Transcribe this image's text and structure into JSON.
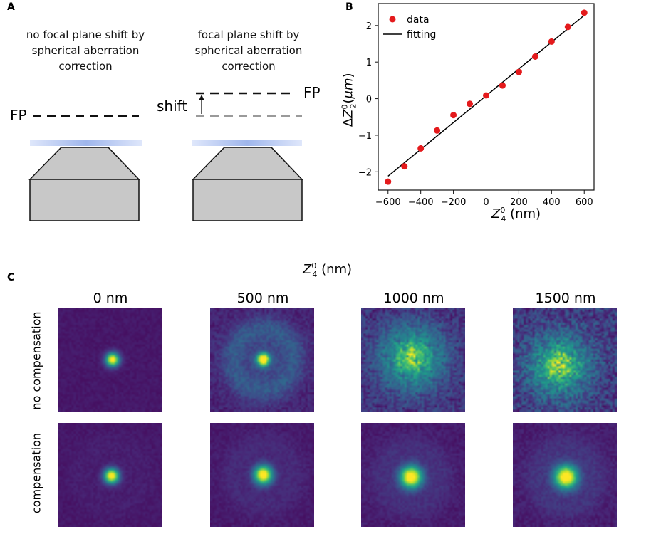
{
  "panel_labels": {
    "a": "A",
    "b": "B",
    "c": "C"
  },
  "panel_a": {
    "left_caption": [
      "no focal plane shift by",
      "spherical aberration",
      "correction"
    ],
    "right_caption": [
      "focal plane shift by",
      "spherical aberration",
      "correction"
    ],
    "fp_label": "FP",
    "shift_label": "shift",
    "colors": {
      "objective_fill": "#c8c8c8",
      "lens": "#bfe8f0",
      "coverslip": "#b5c8ee",
      "dashed_line": "#111111",
      "shifted_line": "#9a9a9a"
    }
  },
  "chart_data": {
    "type": "scatter",
    "x": [
      -600,
      -500,
      -400,
      -300,
      -200,
      -100,
      0,
      100,
      200,
      300,
      400,
      500,
      600
    ],
    "series": [
      {
        "name": "data",
        "kind": "scatter",
        "color": "#e41a1c",
        "values": [
          -2.27,
          -1.85,
          -1.36,
          -0.87,
          -0.45,
          -0.14,
          0.09,
          0.36,
          0.73,
          1.15,
          1.56,
          1.96,
          2.35
        ]
      },
      {
        "name": "fitting",
        "kind": "line",
        "color": "#000000",
        "x": [
          -600,
          600
        ],
        "values": [
          -2.12,
          2.28
        ]
      }
    ],
    "xlabel": "Z₄⁰ (nm)",
    "ylabel": "ΔZ₂⁰(μm)",
    "xticks": [
      -600,
      -400,
      -200,
      0,
      200,
      400,
      600
    ],
    "xtick_labels": [
      "−600",
      "−400",
      "−200",
      "0",
      "200",
      "400",
      "600"
    ],
    "yticks": [
      -2,
      -1,
      0,
      1,
      2
    ],
    "ytick_labels": [
      "−2",
      "−1",
      "0",
      "1",
      "2"
    ],
    "xlim": [
      -660,
      660
    ],
    "ylim": [
      -2.5,
      2.6
    ],
    "legend": [
      "data",
      "fitting"
    ],
    "legend_position": "top-left"
  },
  "panel_c": {
    "title": "Z₄⁰ (nm)",
    "columns": [
      "0 nm",
      "500 nm",
      "1000 nm",
      "1500 nm"
    ],
    "rows": [
      "no compensation",
      "compensation"
    ],
    "colormap": "viridis"
  }
}
